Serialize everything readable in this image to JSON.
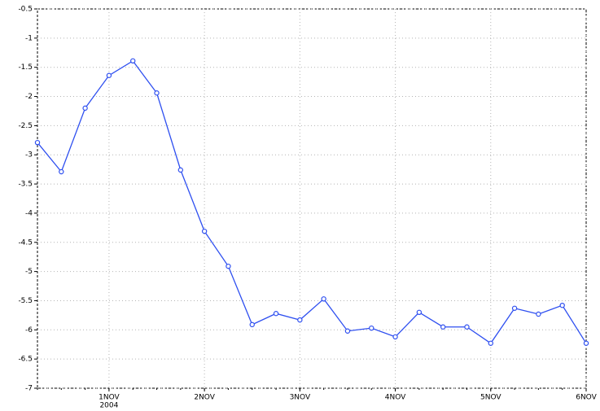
{
  "chart_data": {
    "type": "line",
    "categories": [
      null,
      null,
      null,
      "1NOV",
      null,
      null,
      null,
      "2NOV",
      null,
      null,
      null,
      "3NOV",
      null,
      null,
      null,
      "4NOV",
      null,
      null,
      null,
      "5NOV",
      null,
      null,
      null,
      "6NOV"
    ],
    "x_year_label": "2004",
    "series": [
      {
        "color": "#2e4ff0",
        "values": [
          -2.79,
          -3.29,
          -2.2,
          -1.64,
          -1.39,
          -1.94,
          -3.26,
          -4.31,
          -4.91,
          -5.91,
          -5.72,
          -5.83,
          -5.47,
          -6.02,
          -5.97,
          -6.12,
          -5.7,
          -5.95,
          -5.95,
          -6.23,
          -5.63,
          -5.73,
          -5.58,
          -6.23
        ]
      }
    ],
    "ylim": [
      -7,
      -0.5
    ],
    "yticks": [
      -7,
      -6.5,
      -6,
      -5.5,
      -5,
      -4.5,
      -4,
      -3.5,
      -3,
      -2.5,
      -2,
      -1.5,
      -1,
      -0.5
    ],
    "grid": true
  }
}
